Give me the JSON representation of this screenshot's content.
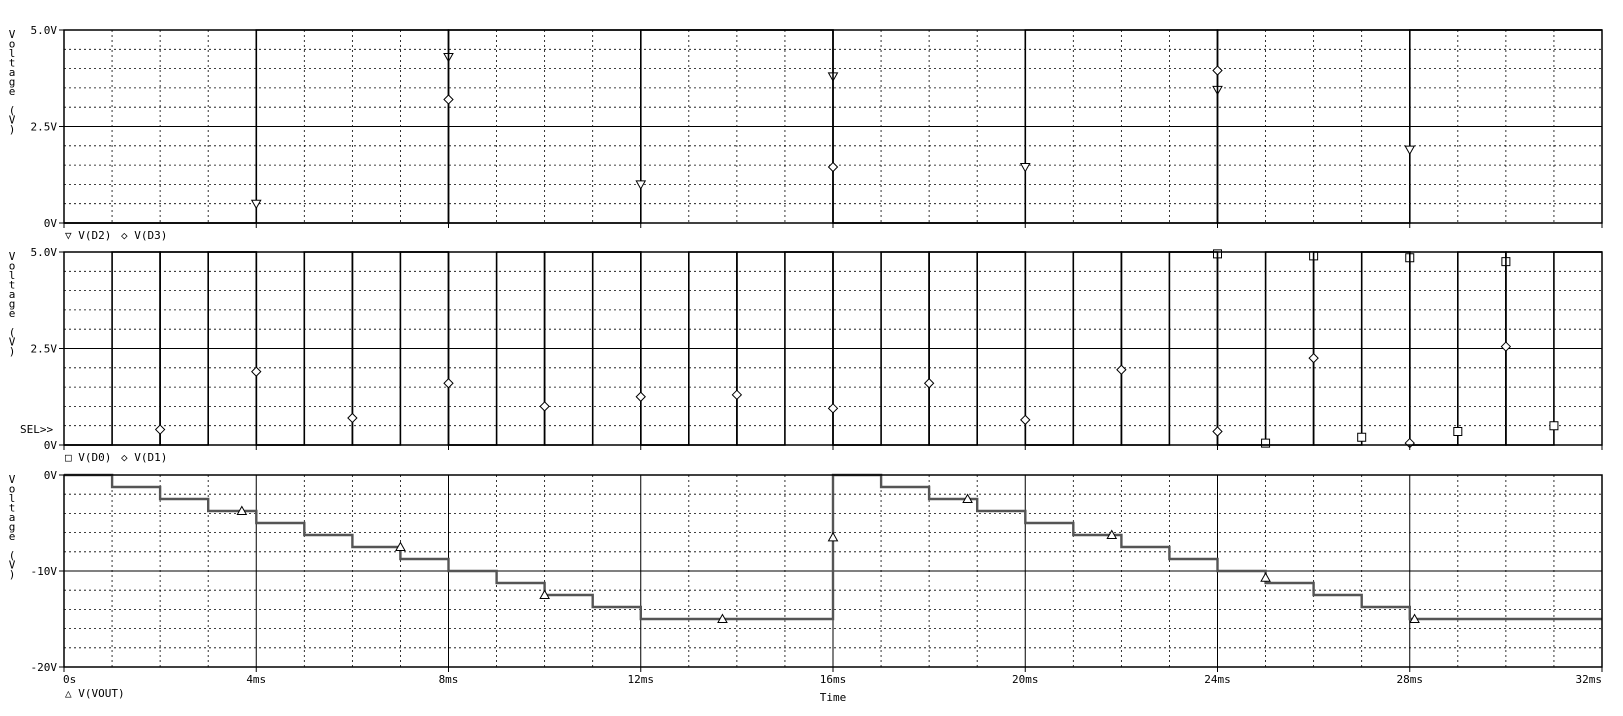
{
  "chart_data": [
    {
      "type": "line",
      "title": "",
      "xlabel": "",
      "ylabel": "Voltage (V)",
      "xlim": [
        0,
        32
      ],
      "ylim": [
        0,
        5
      ],
      "grid": true,
      "y_ticks": [
        "0V",
        "2.5V",
        "5.0V"
      ],
      "legend": "V(D2) V(D3)",
      "series": [
        {
          "name": "V(D2)",
          "marker": "down-triangle",
          "x": [
            0,
            4,
            4,
            8,
            8,
            12,
            12,
            16,
            16,
            20,
            20,
            24,
            24,
            28,
            28,
            32
          ],
          "y": [
            0,
            0,
            5,
            5,
            0,
            0,
            5,
            5,
            0,
            0,
            5,
            5,
            0,
            0,
            5,
            5
          ],
          "markers": [
            [
              4,
              0.5
            ],
            [
              8,
              4.3
            ],
            [
              12,
              1.0
            ],
            [
              16,
              3.8
            ],
            [
              20,
              1.45
            ],
            [
              24,
              3.45
            ],
            [
              28,
              1.9
            ]
          ]
        },
        {
          "name": "V(D3)",
          "marker": "diamond",
          "x": [
            0,
            8,
            8,
            16,
            16,
            24,
            24,
            32
          ],
          "y": [
            0,
            0,
            5,
            5,
            0,
            0,
            5,
            5
          ],
          "markers": [
            [
              8,
              3.2
            ],
            [
              16,
              1.45
            ],
            [
              24,
              3.95
            ]
          ]
        }
      ]
    },
    {
      "type": "line",
      "title": "",
      "xlabel": "",
      "ylabel": "Voltage (V)",
      "xlim": [
        0,
        32
      ],
      "ylim": [
        0,
        5
      ],
      "grid": true,
      "y_ticks": [
        "0V",
        "2.5V",
        "5.0V"
      ],
      "legend": "V(D0) V(D1)",
      "annotation": "SEL>>",
      "series": [
        {
          "name": "V(D0)",
          "marker": "square",
          "x": [
            0,
            1,
            1,
            2,
            2,
            3,
            3,
            4,
            4,
            5,
            5,
            6,
            6,
            7,
            7,
            8,
            8,
            9,
            9,
            10,
            10,
            11,
            11,
            12,
            12,
            13,
            13,
            14,
            14,
            15,
            15,
            16,
            16,
            17,
            17,
            18,
            18,
            19,
            19,
            20,
            20,
            21,
            21,
            22,
            22,
            23,
            23,
            24,
            24,
            25,
            25,
            26,
            26,
            27,
            27,
            28,
            28,
            29,
            29,
            30,
            30,
            31,
            31,
            32
          ],
          "y": [
            0,
            0,
            5,
            5,
            0,
            0,
            5,
            5,
            0,
            0,
            5,
            5,
            0,
            0,
            5,
            5,
            0,
            0,
            5,
            5,
            0,
            0,
            5,
            5,
            0,
            0,
            5,
            5,
            0,
            0,
            5,
            5,
            0,
            0,
            5,
            5,
            0,
            0,
            5,
            5,
            0,
            0,
            5,
            5,
            0,
            0,
            5,
            5,
            0,
            0,
            5,
            5,
            0,
            0,
            5,
            5,
            0,
            0,
            5,
            5,
            0,
            0,
            5,
            5
          ],
          "markers": [
            [
              24,
              4.95
            ],
            [
              25,
              0.05
            ],
            [
              26,
              4.9
            ],
            [
              27,
              0.2
            ],
            [
              28,
              4.85
            ],
            [
              29,
              0.35
            ],
            [
              30,
              4.75
            ],
            [
              31,
              0.5
            ]
          ]
        },
        {
          "name": "V(D1)",
          "marker": "diamond",
          "x": [
            0,
            2,
            2,
            4,
            4,
            6,
            6,
            8,
            8,
            10,
            10,
            12,
            12,
            14,
            14,
            16,
            16,
            18,
            18,
            20,
            20,
            22,
            22,
            24,
            24,
            26,
            26,
            28,
            28,
            30,
            30,
            32
          ],
          "y": [
            0,
            0,
            5,
            5,
            0,
            0,
            5,
            5,
            0,
            0,
            5,
            5,
            0,
            0,
            5,
            5,
            0,
            0,
            5,
            5,
            0,
            0,
            5,
            5,
            0,
            0,
            5,
            5,
            0,
            0,
            5,
            5
          ],
          "markers": [
            [
              2,
              0.4
            ],
            [
              4,
              1.9
            ],
            [
              6,
              0.7
            ],
            [
              8,
              1.6
            ],
            [
              10,
              1.0
            ],
            [
              12,
              1.25
            ],
            [
              14,
              1.3
            ],
            [
              16,
              0.95
            ],
            [
              18,
              1.6
            ],
            [
              20,
              0.65
            ],
            [
              22,
              1.95
            ],
            [
              24,
              0.35
            ],
            [
              26,
              2.25
            ],
            [
              28,
              0.05
            ],
            [
              30,
              2.55
            ]
          ]
        }
      ]
    },
    {
      "type": "line",
      "title": "",
      "xlabel": "Time",
      "ylabel": "Voltage (V)",
      "xlim": [
        0,
        32
      ],
      "ylim": [
        -20,
        0
      ],
      "grid": true,
      "y_ticks": [
        "-20V",
        "-10V",
        "0V"
      ],
      "x_ticks": [
        "0s",
        "4ms",
        "8ms",
        "12ms",
        "16ms",
        "20ms",
        "24ms",
        "28ms",
        "32ms"
      ],
      "legend": "V(VOUT)",
      "series": [
        {
          "name": "V(VOUT)",
          "marker": "up-triangle",
          "x": [
            0,
            1,
            1,
            2,
            2,
            3,
            3,
            4,
            4,
            5,
            5,
            6,
            6,
            7,
            7,
            8,
            8,
            9,
            9,
            10,
            10,
            11,
            11,
            12,
            12,
            13,
            13,
            14,
            14,
            15,
            15,
            16,
            16,
            17,
            17,
            18,
            18,
            19,
            19,
            20,
            20,
            21,
            21,
            22,
            22,
            23,
            23,
            24,
            24,
            25,
            25,
            26,
            26,
            27,
            27,
            28,
            28,
            29,
            29,
            30,
            30,
            31,
            31,
            32
          ],
          "y": [
            0,
            0,
            -1.25,
            -1.25,
            -2.5,
            -2.5,
            -3.75,
            -3.75,
            -5,
            -5,
            -6.25,
            -6.25,
            -7.5,
            -7.5,
            -8.75,
            -8.75,
            -10,
            -10,
            -11.25,
            -11.25,
            -12.5,
            -12.5,
            -13.75,
            -13.75,
            -15,
            -15,
            -15,
            -15,
            -15,
            -15,
            -15,
            -15,
            0,
            0,
            -1.25,
            -1.25,
            -2.5,
            -2.5,
            -3.75,
            -3.75,
            -5,
            -5,
            -6.25,
            -6.25,
            -7.5,
            -7.5,
            -8.75,
            -8.75,
            -10,
            -10,
            -11.25,
            -11.25,
            -12.5,
            -12.5,
            -13.75,
            -13.75,
            -15,
            -15,
            -15,
            -15,
            -15,
            -15,
            -15,
            -15
          ],
          "markers": [
            [
              3.7,
              -3.75
            ],
            [
              7,
              -7.5
            ],
            [
              10,
              -12.5
            ],
            [
              13.7,
              -15
            ],
            [
              16,
              -6.5
            ],
            [
              18.8,
              -2.5
            ],
            [
              21.8,
              -6.25
            ],
            [
              25,
              -10.7
            ],
            [
              28.1,
              -15
            ]
          ]
        }
      ]
    }
  ]
}
